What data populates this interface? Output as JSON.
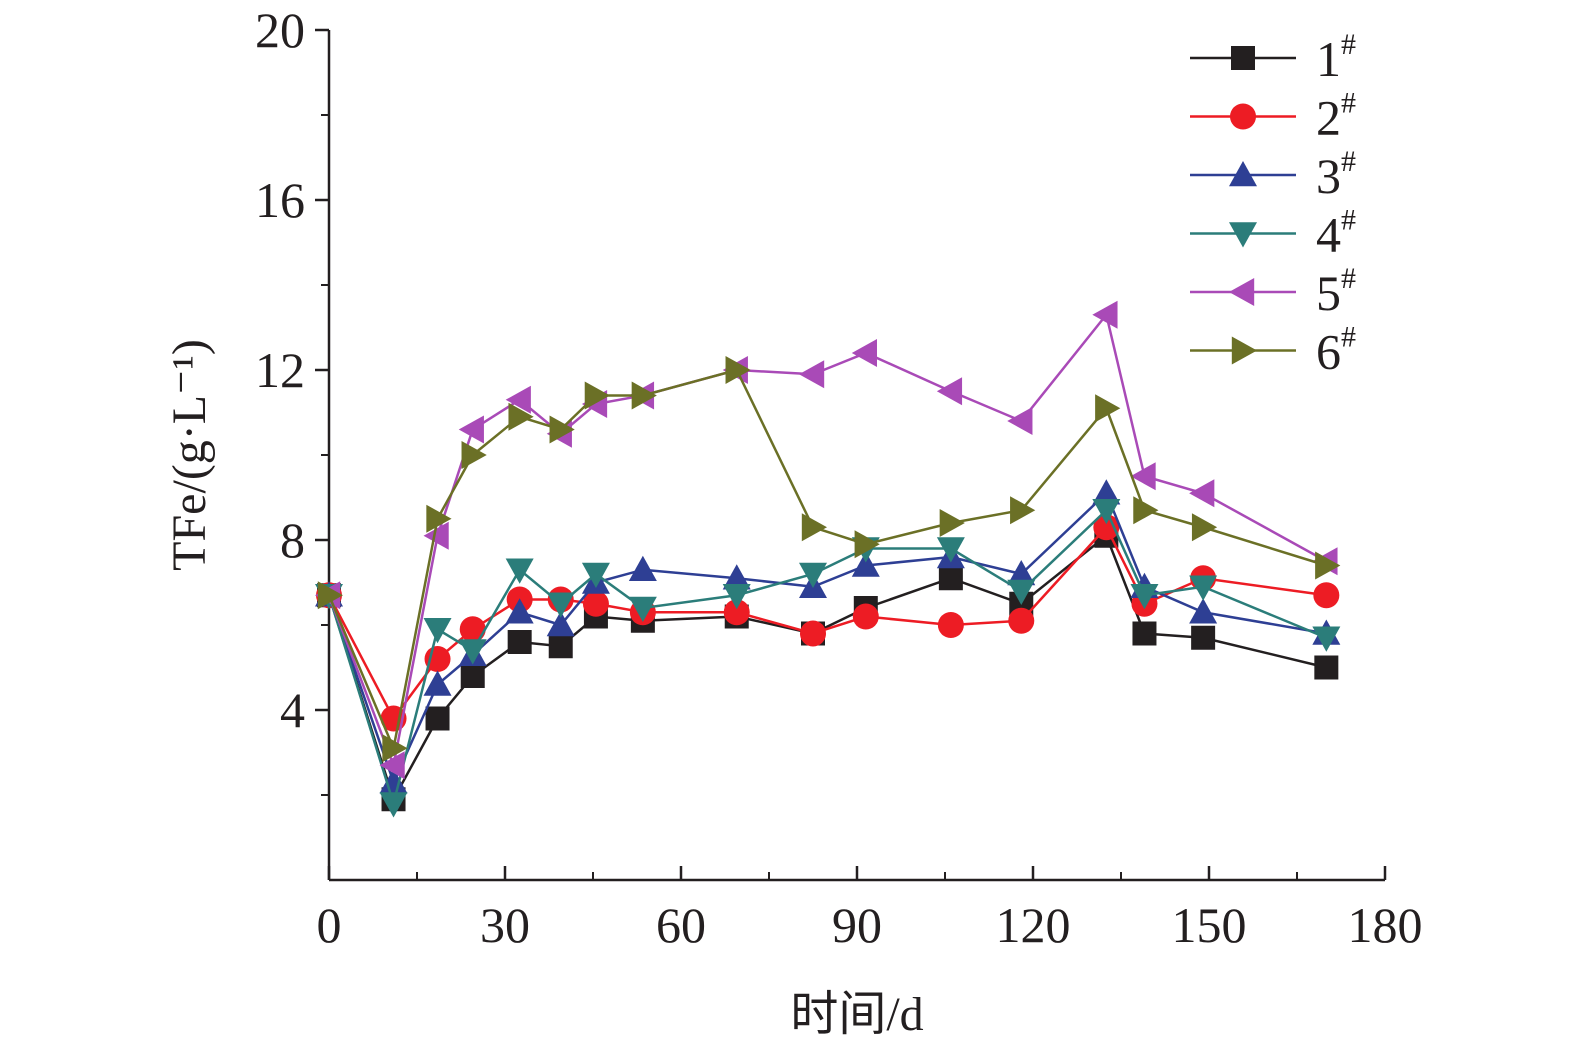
{
  "chart_data": {
    "type": "line",
    "xlabel": "时间/d",
    "ylabel": "TFe/(g·L⁻¹)",
    "xlim": [
      0,
      180
    ],
    "ylim": [
      0,
      20
    ],
    "xticks": [
      0,
      30,
      60,
      90,
      120,
      150,
      180
    ],
    "yticks": [
      4,
      8,
      12,
      16,
      20
    ],
    "xtick_labels": [
      "0",
      "30",
      "60",
      "90",
      "120",
      "150",
      "180"
    ],
    "ytick_labels": [
      "4",
      "8",
      "12",
      "16",
      "20"
    ],
    "grid": false,
    "legend_position": "top-right",
    "series": [
      {
        "name": "1#",
        "label_main": "1",
        "label_sup": "#",
        "color": "#231f20",
        "marker": "square",
        "x": [
          0,
          11,
          18.5,
          24.5,
          32.5,
          39.5,
          45.5,
          53.5,
          69.5,
          82.5,
          91.5,
          106,
          118,
          132.5,
          139,
          149,
          170
        ],
        "y": [
          6.7,
          1.9,
          3.8,
          4.8,
          5.6,
          5.5,
          6.2,
          6.1,
          6.2,
          5.8,
          6.4,
          7.1,
          6.5,
          8.1,
          5.8,
          5.7,
          5.0
        ]
      },
      {
        "name": "2#",
        "label_main": "2",
        "label_sup": "#",
        "color": "#ed1c24",
        "marker": "circle",
        "x": [
          0,
          11,
          18.5,
          24.5,
          32.5,
          39.5,
          45.5,
          53.5,
          69.5,
          82.5,
          91.5,
          106,
          118,
          132.5,
          139,
          149,
          170
        ],
        "y": [
          6.7,
          3.8,
          5.2,
          5.9,
          6.6,
          6.6,
          6.5,
          6.3,
          6.3,
          5.8,
          6.2,
          6.0,
          6.1,
          8.3,
          6.5,
          7.1,
          6.7
        ]
      },
      {
        "name": "3#",
        "label_main": "3",
        "label_sup": "#",
        "color": "#2e3f94",
        "marker": "triangle-up",
        "x": [
          0,
          11,
          18.5,
          24.5,
          32.5,
          39.5,
          45.5,
          53.5,
          69.5,
          82.5,
          91.5,
          106,
          118,
          132.5,
          139,
          149,
          170
        ],
        "y": [
          6.7,
          2.3,
          4.6,
          5.3,
          6.3,
          6.0,
          7.0,
          7.3,
          7.1,
          6.9,
          7.4,
          7.6,
          7.2,
          9.1,
          6.9,
          6.3,
          5.8
        ]
      },
      {
        "name": "4#",
        "label_main": "4",
        "label_sup": "#",
        "color": "#2b7d7a",
        "marker": "triangle-down",
        "x": [
          0,
          11,
          18.5,
          24.5,
          32.5,
          39.5,
          45.5,
          53.5,
          69.5,
          82.5,
          91.5,
          106,
          118,
          132.5,
          139,
          149,
          170
        ],
        "y": [
          6.7,
          1.8,
          5.9,
          5.4,
          7.3,
          6.5,
          7.2,
          6.4,
          6.7,
          7.2,
          7.8,
          7.8,
          6.8,
          8.7,
          6.7,
          6.9,
          5.7
        ]
      },
      {
        "name": "5#",
        "label_main": "5",
        "label_sup": "#",
        "color": "#a94ab7",
        "marker": "triangle-left",
        "x": [
          0,
          11,
          18.5,
          24.5,
          32.5,
          39.5,
          45.5,
          53.5,
          69.5,
          82.5,
          91.5,
          106,
          118,
          132.5,
          139,
          149,
          170
        ],
        "y": [
          6.7,
          2.7,
          8.1,
          10.6,
          11.3,
          10.5,
          11.2,
          11.4,
          12.0,
          11.9,
          12.4,
          11.5,
          10.8,
          13.3,
          9.5,
          9.1,
          7.5
        ]
      },
      {
        "name": "6#",
        "label_main": "6",
        "label_sup": "#",
        "color": "#6b7026",
        "marker": "triangle-right",
        "x": [
          0,
          11,
          18.5,
          24.5,
          32.5,
          39.5,
          45.5,
          53.5,
          69.5,
          82.5,
          91.5,
          106,
          118,
          132.5,
          139,
          149,
          170
        ],
        "y": [
          6.7,
          3.1,
          8.5,
          10.0,
          10.9,
          10.6,
          11.4,
          11.4,
          12.0,
          8.3,
          7.9,
          8.4,
          8.7,
          11.1,
          8.7,
          8.3,
          7.4
        ]
      }
    ]
  }
}
